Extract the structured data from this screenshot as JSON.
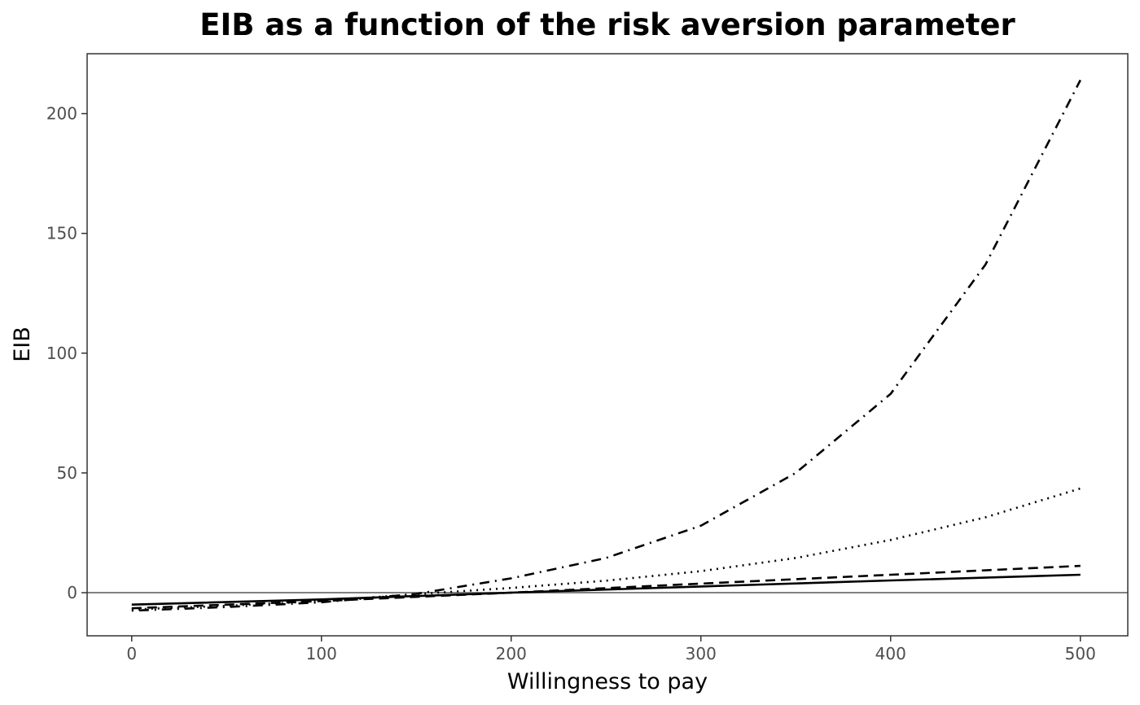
{
  "chart_data": {
    "type": "line",
    "title": "EIB as a function of the risk aversion parameter",
    "xlabel": "Willingness to pay",
    "ylabel": "EIB",
    "xlim": [
      -23.5,
      525
    ],
    "ylim": [
      -18,
      225
    ],
    "x_ticks": [
      0,
      100,
      200,
      300,
      400,
      500
    ],
    "y_ticks": [
      0,
      50,
      100,
      150,
      200
    ],
    "x_tick_labels": [
      "0",
      "100",
      "200",
      "300",
      "400",
      "500"
    ],
    "y_tick_labels": [
      "0",
      "50",
      "100",
      "150",
      "200"
    ],
    "grid": false,
    "legend": "none",
    "reference_line": {
      "y": 0,
      "color": "#808080"
    },
    "series": [
      {
        "style": "solid",
        "x": [
          0,
          100,
          200,
          300,
          400,
          500
        ],
        "y": [
          -5,
          -2.8,
          0,
          2.6,
          5.1,
          7.5
        ]
      },
      {
        "style": "dashed",
        "x": [
          0,
          100,
          200,
          300,
          400,
          500
        ],
        "y": [
          -6.5,
          -3.5,
          0,
          3.8,
          7.5,
          11.2
        ]
      },
      {
        "style": "dotted",
        "x": [
          0,
          50,
          100,
          150,
          200,
          250,
          300,
          350,
          400,
          450,
          500
        ],
        "y": [
          -7,
          -5.5,
          -3.5,
          -0.6,
          2,
          5,
          9,
          14.5,
          22,
          31.5,
          43.5
        ]
      },
      {
        "style": "dotdash",
        "x": [
          0,
          50,
          100,
          150,
          200,
          250,
          300,
          350,
          400,
          450,
          500
        ],
        "y": [
          -7.5,
          -6,
          -4,
          -0.5,
          6,
          14.5,
          28,
          50,
          83,
          137,
          214
        ]
      }
    ]
  }
}
